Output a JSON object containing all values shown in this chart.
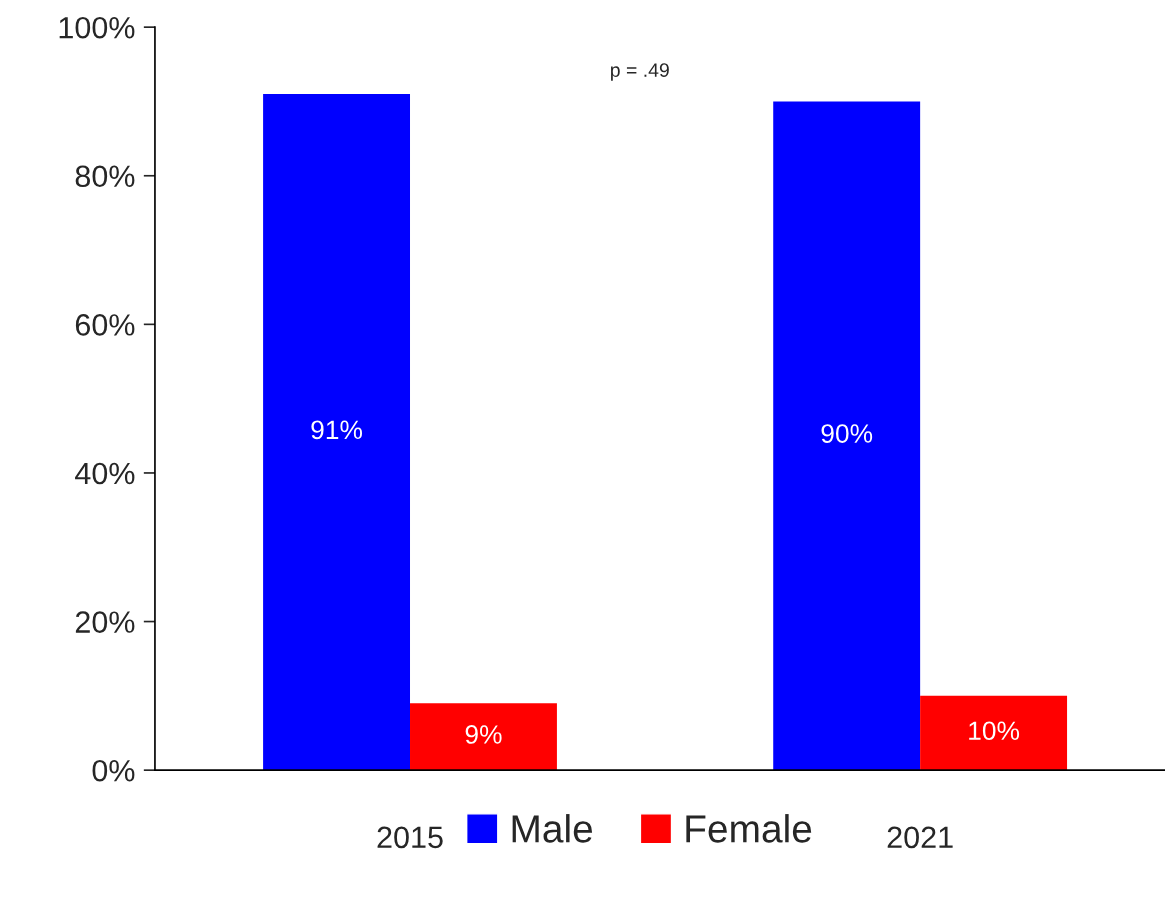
{
  "chart_data": {
    "type": "bar",
    "categories": [
      "2015",
      "2021"
    ],
    "series": [
      {
        "name": "Male",
        "color": "#0000ff",
        "values": [
          91,
          90
        ],
        "value_labels": [
          "91%",
          "90%"
        ]
      },
      {
        "name": "Female",
        "color": "#ff0000",
        "values": [
          9,
          10
        ],
        "value_labels": [
          "9%",
          "10%"
        ]
      }
    ],
    "ylim": [
      0,
      100
    ],
    "yticks": [
      {
        "value": 0,
        "label": "0%"
      },
      {
        "value": 20,
        "label": "20%"
      },
      {
        "value": 40,
        "label": "40%"
      },
      {
        "value": 60,
        "label": "60%"
      },
      {
        "value": 80,
        "label": "80%"
      },
      {
        "value": 100,
        "label": "100%"
      }
    ],
    "annotations": [
      "p = .49"
    ],
    "grid": false,
    "legend": "bottom"
  }
}
